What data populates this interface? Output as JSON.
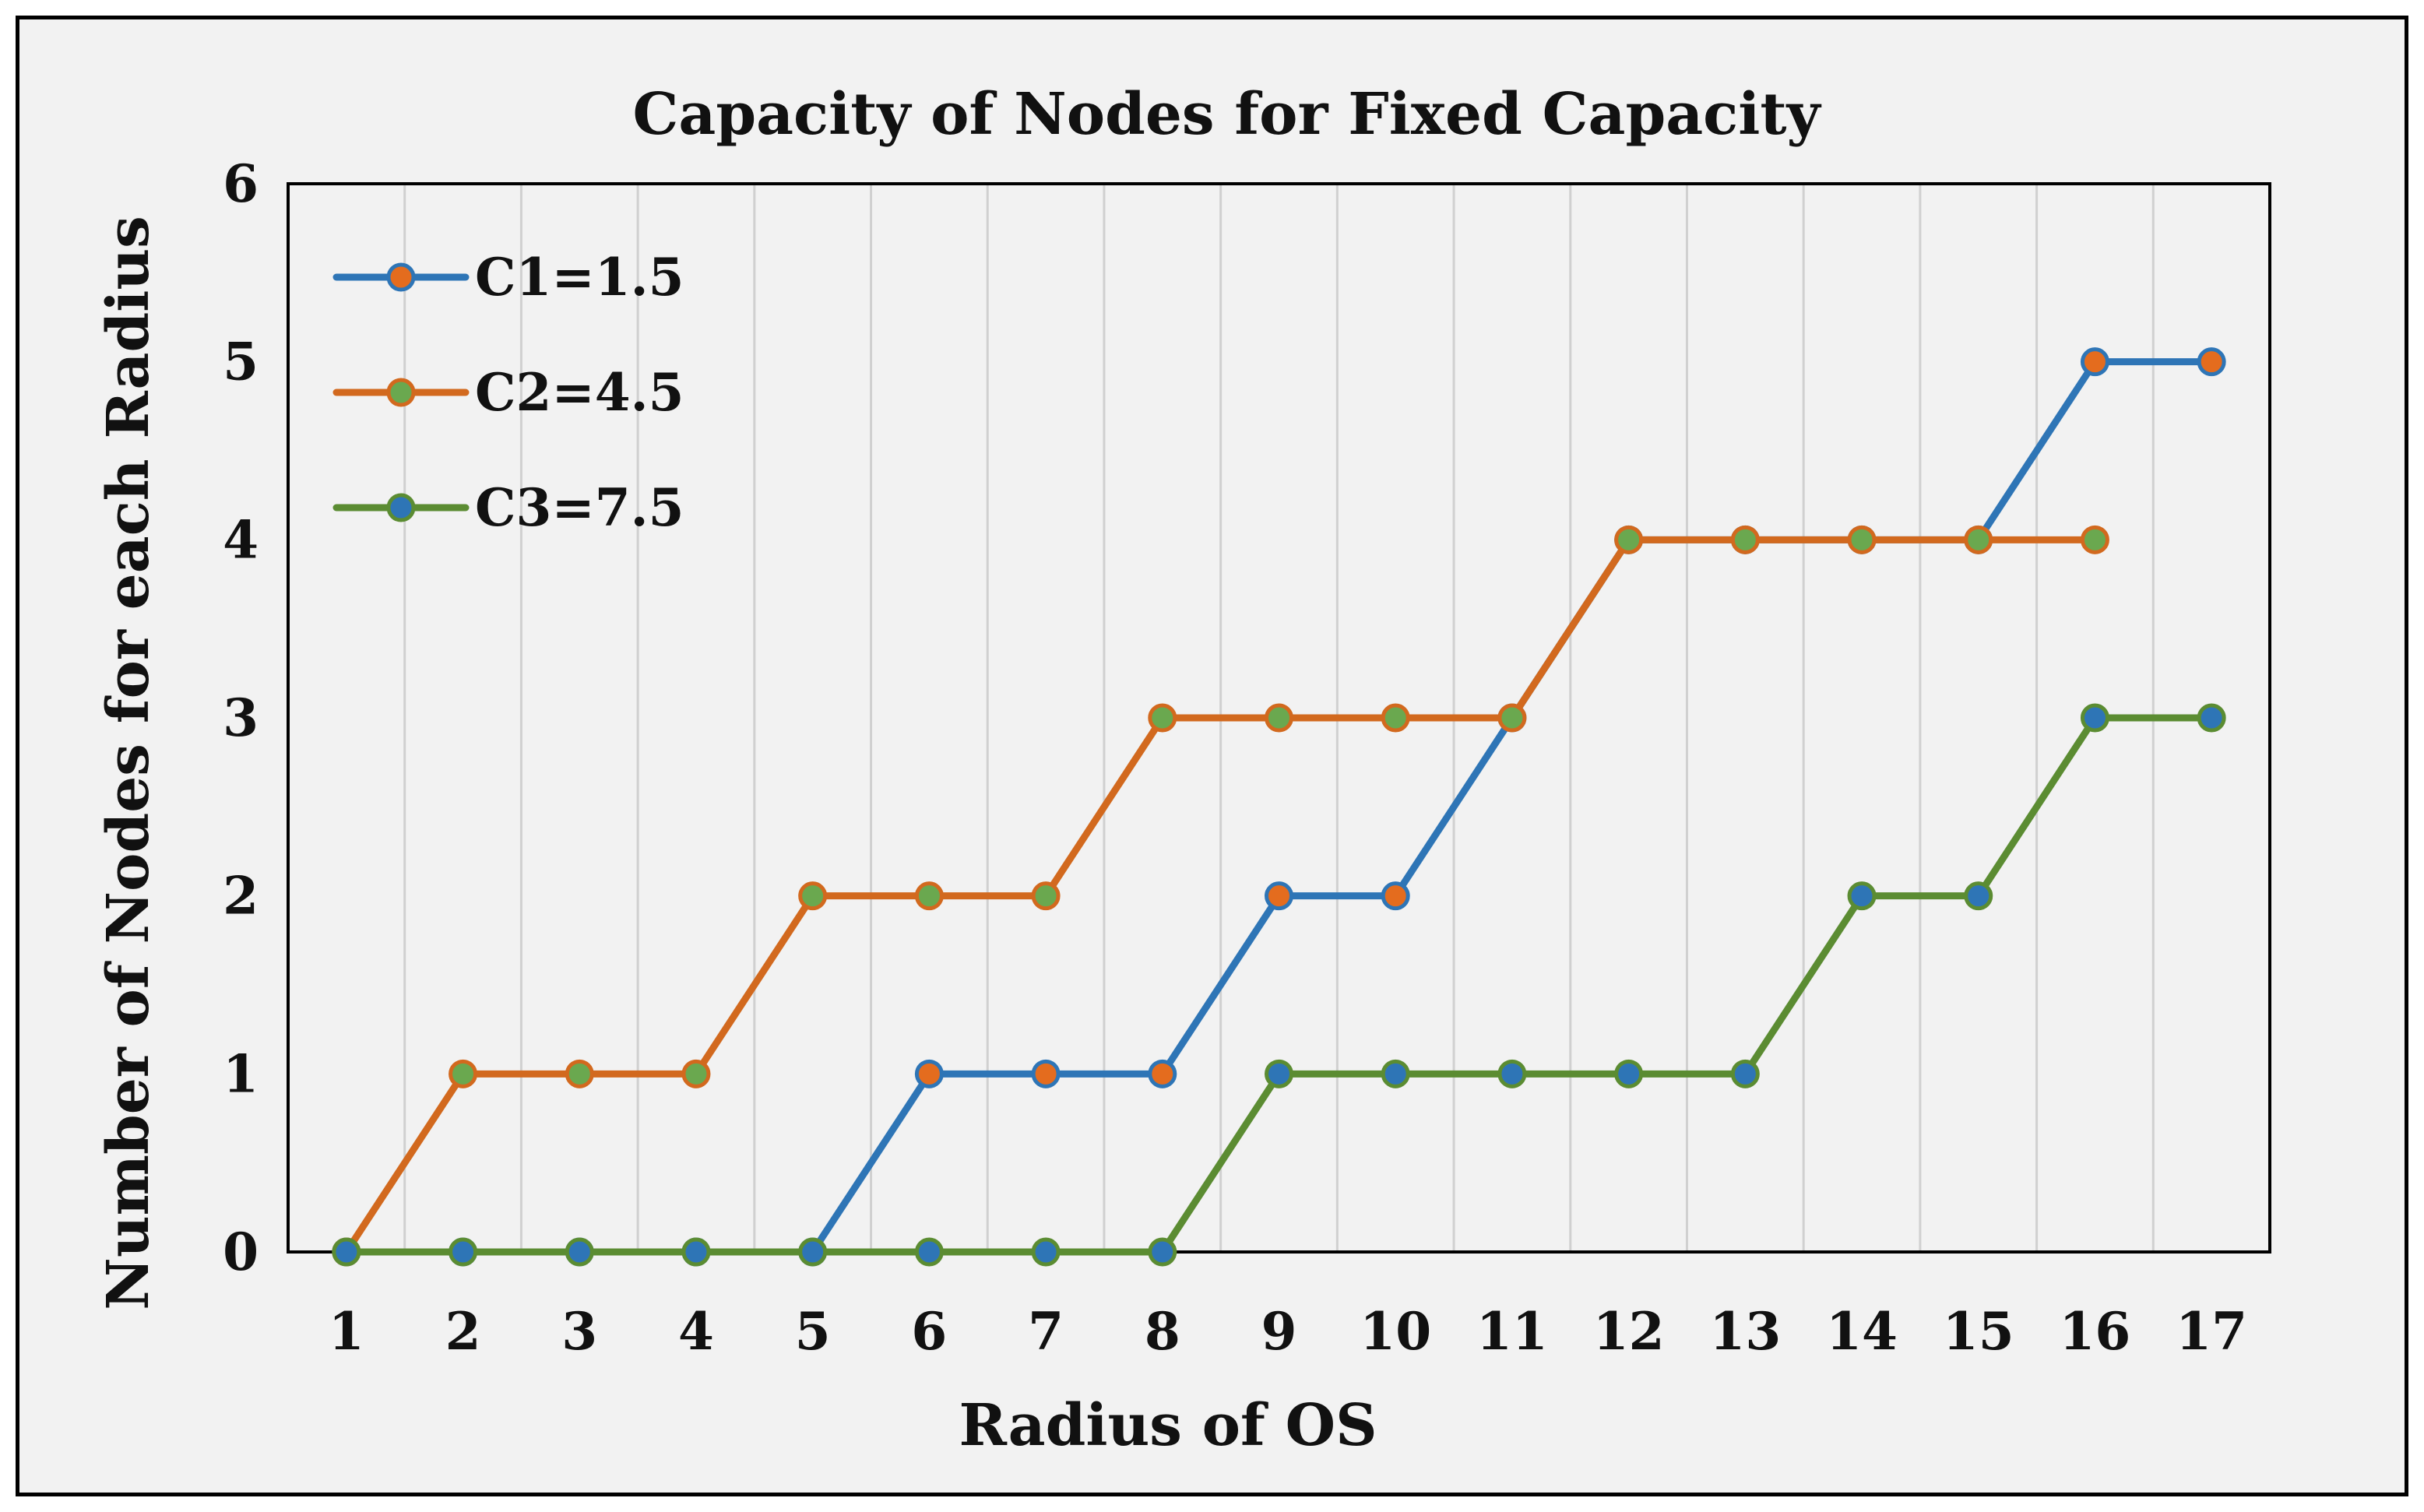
{
  "chart_data": {
    "type": "line",
    "title": "Capacity of Nodes for Fixed Capacity",
    "xlabel": "Radius of OS",
    "ylabel": "Number of Nodes for each Radius",
    "x": [
      1,
      2,
      3,
      4,
      5,
      6,
      7,
      8,
      9,
      10,
      11,
      12,
      13,
      14,
      15,
      16,
      17
    ],
    "ylim": [
      0,
      6
    ],
    "yticks": [
      0,
      1,
      2,
      3,
      4,
      5,
      6
    ],
    "grid": "vertical",
    "legend_position": "top-left",
    "series": [
      {
        "name": "C1=1.5",
        "line_color": "#2e75b6",
        "marker_color": "#e46c1e",
        "values": [
          0,
          0,
          0,
          0,
          0,
          1,
          1,
          1,
          2,
          2,
          3,
          4,
          4,
          4,
          4,
          5,
          5
        ]
      },
      {
        "name": "C2=4.5",
        "line_color": "#d2691e",
        "marker_color": "#6aa84f",
        "values": [
          0,
          1,
          1,
          1,
          2,
          2,
          2,
          3,
          3,
          3,
          3,
          4,
          4,
          4,
          4,
          4,
          null
        ]
      },
      {
        "name": "C3=7.5",
        "line_color": "#5b8c32",
        "marker_color": "#2e75b6",
        "values": [
          0,
          0,
          0,
          0,
          0,
          0,
          0,
          0,
          1,
          1,
          1,
          1,
          1,
          2,
          2,
          3,
          3
        ]
      }
    ]
  }
}
